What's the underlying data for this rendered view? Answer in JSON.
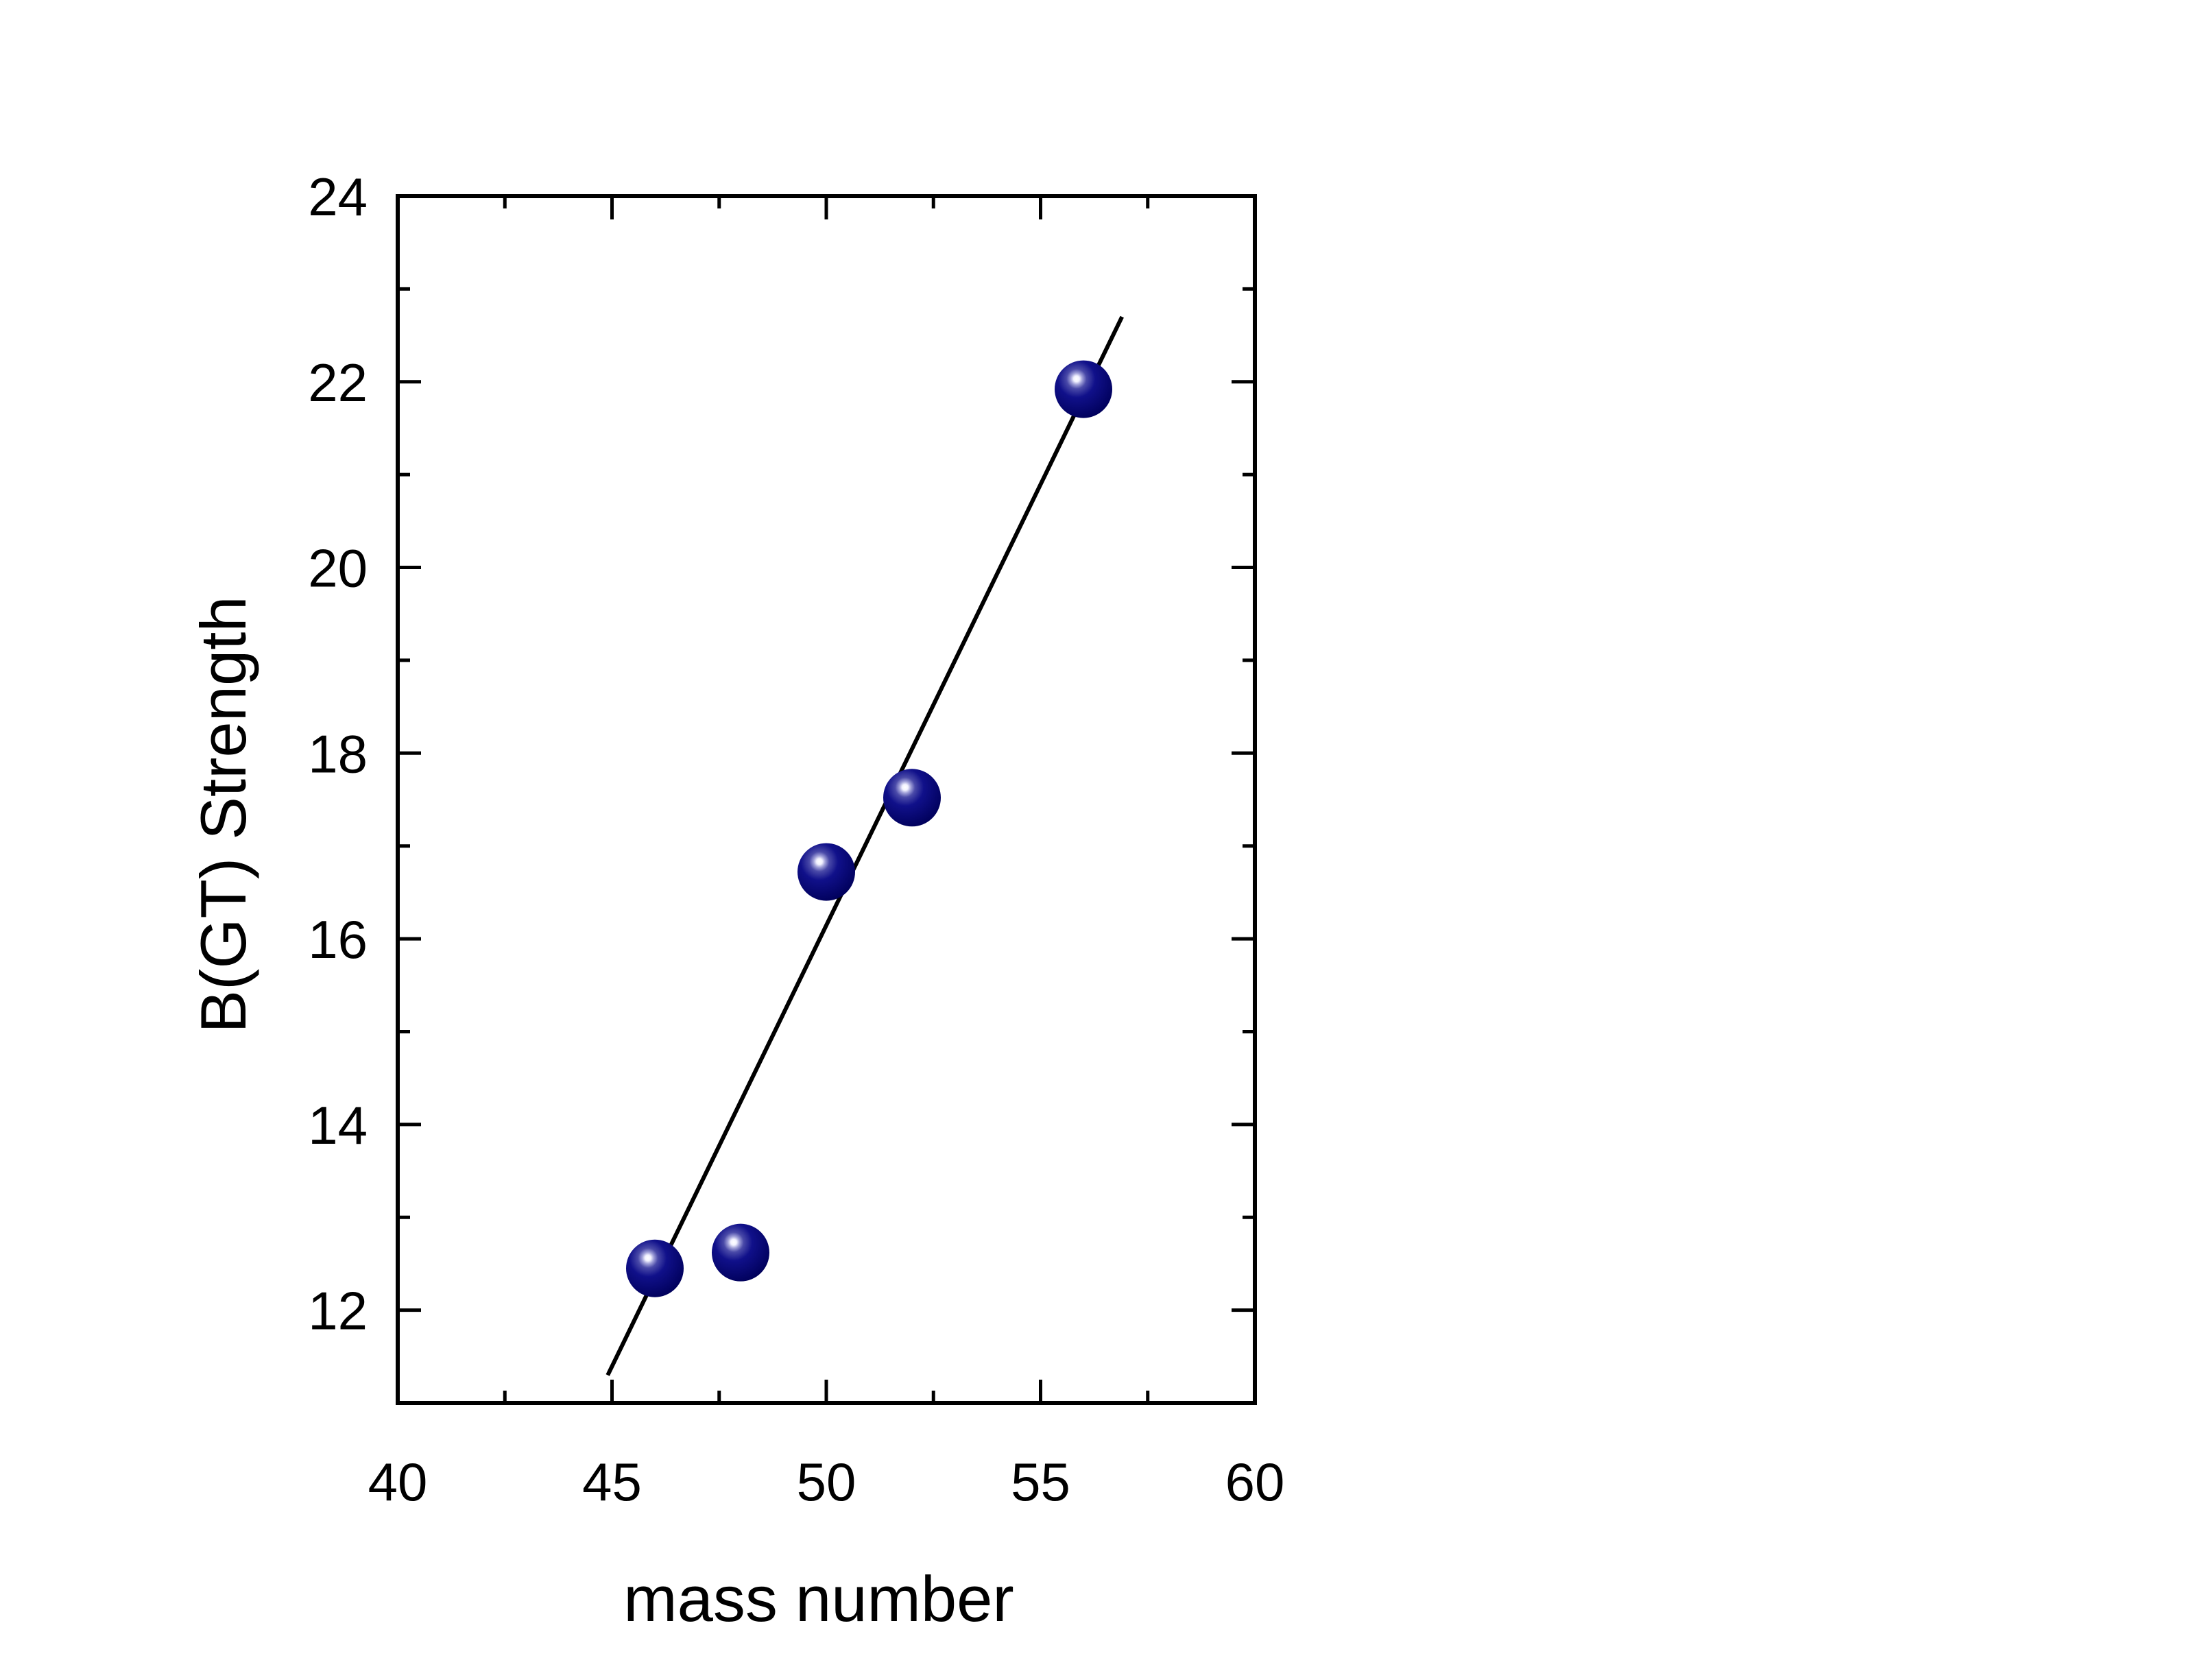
{
  "chart_data": {
    "type": "scatter",
    "title": "",
    "xlabel": "mass number",
    "ylabel": "B(GT) Strength",
    "xlim": [
      40,
      60
    ],
    "ylim": [
      11,
      24
    ],
    "x_ticks": [
      40,
      45,
      50,
      55,
      60
    ],
    "y_ticks": [
      12,
      14,
      16,
      18,
      20,
      22,
      24
    ],
    "x_minor_step": 2.5,
    "y_minor_step": 1,
    "grid": false,
    "legend": "none",
    "series": [
      {
        "type": "scatter",
        "marker": "sphere",
        "color": "#00007f",
        "x": [
          46,
          48,
          50,
          52,
          56
        ],
        "y": [
          12.45,
          12.62,
          16.72,
          17.52,
          21.92
        ]
      }
    ],
    "fit_line": {
      "type": "line",
      "color": "#000000",
      "x": [
        44.9,
        56.9
      ],
      "y": [
        11.3,
        22.7
      ]
    }
  }
}
